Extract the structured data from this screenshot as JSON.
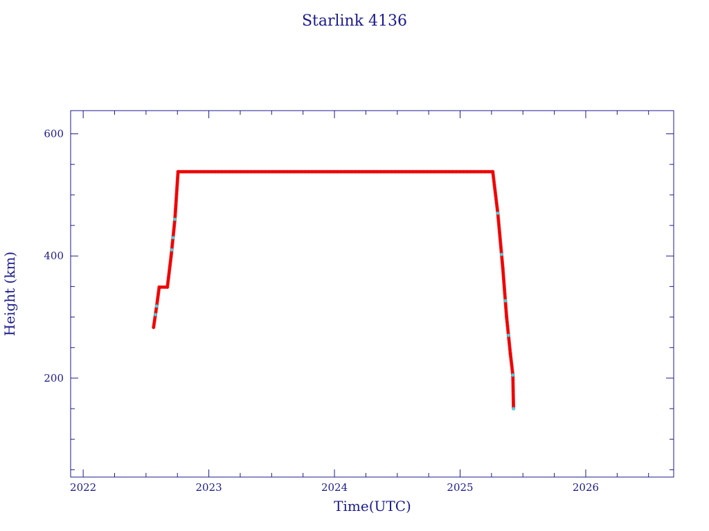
{
  "chart_data": {
    "type": "scatter",
    "title": "Starlink 4136",
    "xlabel": "Time(UTC)",
    "ylabel": "Height (km)",
    "xlim": [
      2021.9,
      2026.7
    ],
    "ylim": [
      38,
      638
    ],
    "x_ticks": [
      2022,
      2023,
      2024,
      2025,
      2026
    ],
    "y_ticks": [
      200,
      400,
      600
    ],
    "x_minor_step": 0.25,
    "y_minor_step": 50,
    "grid": false,
    "colors": {
      "axis": "#1a1a8c",
      "primary_marker": "#ee0000",
      "secondary_marker": "#40d8e8"
    },
    "series": [
      {
        "segments": [
          [
            [
              2022.56,
              283
            ],
            [
              2022.585,
              318
            ],
            [
              2022.605,
              349
            ]
          ],
          [
            [
              2022.605,
              349
            ],
            [
              2022.67,
              349
            ]
          ],
          [
            [
              2022.67,
              349
            ],
            [
              2022.7,
              400
            ],
            [
              2022.73,
              460
            ],
            [
              2022.755,
              538
            ]
          ],
          [
            [
              2022.755,
              538
            ],
            [
              2025.26,
              538
            ]
          ],
          [
            [
              2025.26,
              538
            ],
            [
              2025.3,
              470
            ],
            [
              2025.34,
              380
            ],
            [
              2025.37,
              300
            ],
            [
              2025.4,
              240
            ],
            [
              2025.42,
              205
            ],
            [
              2025.425,
              150
            ]
          ]
        ],
        "cyan_x": [
          2022.575,
          2022.585,
          2022.705,
          2022.715,
          2022.73,
          2025.3,
          2025.33,
          2025.36,
          2025.385,
          2025.42,
          2025.425,
          2025.428
        ]
      }
    ]
  }
}
